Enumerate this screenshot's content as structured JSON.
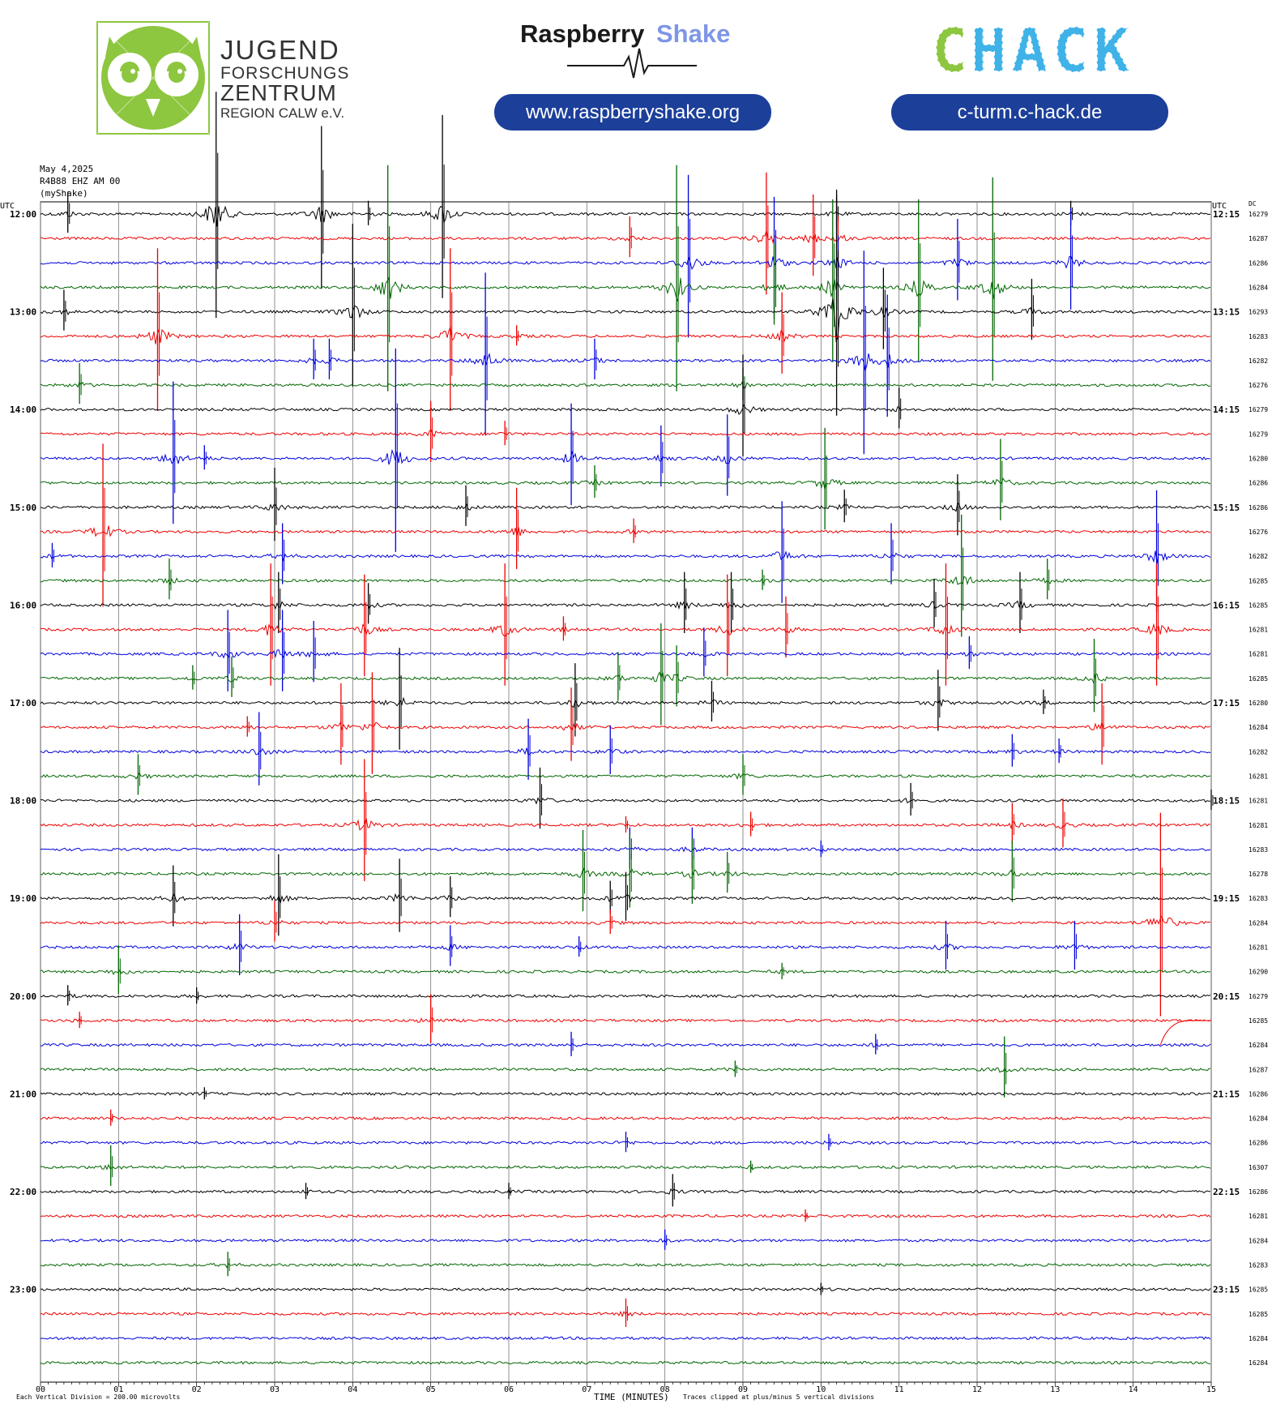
{
  "header": {
    "jfz": {
      "line1": "JUGEND",
      "line2": "FORSCHUNGS",
      "line3": "ZENTRUM",
      "line4": "REGION CALW e.V.",
      "logo_color": "#8dc63f"
    },
    "raspberry": {
      "word1": "Raspberry",
      "word2": "Shake",
      "word2_color": "#7f96e6",
      "url": "www.raspberryshake.org",
      "pill_color": "#1c3f9a"
    },
    "chack": {
      "c_text": "C",
      "hack_text": "HACK",
      "c_color": "#8dc63f",
      "hack_color": "#3fb2e8",
      "url": "c-turm.c-hack.de",
      "pill_color": "#1c3f9a"
    }
  },
  "chart_data": {
    "type": "line",
    "title": "",
    "info_lines": [
      "May 4,2025",
      "R4B88 EHZ AM 00",
      "(myShake)"
    ],
    "left_axis_label": "UTC",
    "right_axis_label": "UTC",
    "dc_label": "DC",
    "xlabel": "TIME (MINUTES)",
    "xlim": [
      0,
      15
    ],
    "x_ticks": [
      "00",
      "01",
      "02",
      "03",
      "04",
      "05",
      "06",
      "07",
      "08",
      "09",
      "10",
      "11",
      "12",
      "13",
      "14",
      "15"
    ],
    "left_hour_labels": [
      "12:00",
      "13:00",
      "14:00",
      "15:00",
      "16:00",
      "17:00",
      "18:00",
      "19:00",
      "20:00",
      "21:00",
      "22:00",
      "23:00"
    ],
    "right_hour_labels": [
      "12:15",
      "13:15",
      "14:15",
      "15:15",
      "16:15",
      "17:15",
      "18:15",
      "19:15",
      "20:15",
      "21:15",
      "22:15",
      "23:15"
    ],
    "dc_values": [
      "16279",
      "16287",
      "16286",
      "16284",
      "16293",
      "16283",
      "16282",
      "16276",
      "16279",
      "16279",
      "16280",
      "16286",
      "16286",
      "16276",
      "16282",
      "16285",
      "16285",
      "16281",
      "16281",
      "16285",
      "16280",
      "16284",
      "16282",
      "16281",
      "16281",
      "16281",
      "16283",
      "16278",
      "16283",
      "16284",
      "16281",
      "16290",
      "16279",
      "16285",
      "16284",
      "16287",
      "16286",
      "16284",
      "16286",
      "16307",
      "16286",
      "16281",
      "16284",
      "16283",
      "16285",
      "16285",
      "16284",
      "16284"
    ],
    "trace_colors": [
      "#000000",
      "#ee0000",
      "#0000dd",
      "#006600"
    ],
    "footer_left": "Each Vertical Division =  200.00 microvolts",
    "footer_right": "Traces clipped at plus/minus 5 vertical divisions",
    "spikes": [
      [
        0,
        0.35,
        1.0
      ],
      [
        0,
        2.25,
        7.5
      ],
      [
        0,
        3.6,
        4.0
      ],
      [
        0,
        5.15,
        4.5
      ],
      [
        0,
        4.2,
        0.6
      ],
      [
        0,
        10.2,
        0.7
      ],
      [
        0,
        13.2,
        0.6
      ],
      [
        1,
        7.55,
        1.0
      ],
      [
        1,
        9.3,
        3.0
      ],
      [
        1,
        9.9,
        2.0
      ],
      [
        1,
        10.2,
        2.0
      ],
      [
        2,
        8.3,
        4.0
      ],
      [
        2,
        9.4,
        3.0
      ],
      [
        2,
        10.2,
        2.5
      ],
      [
        2,
        11.75,
        2.0
      ],
      [
        2,
        13.2,
        2.5
      ],
      [
        3,
        4.45,
        6.0
      ],
      [
        3,
        8.15,
        6.0
      ],
      [
        3,
        9.4,
        2.0
      ],
      [
        3,
        10.15,
        4.0
      ],
      [
        3,
        11.25,
        4.0
      ],
      [
        3,
        12.2,
        5.0
      ],
      [
        4,
        0.3,
        1.0
      ],
      [
        4,
        4.0,
        4.0
      ],
      [
        4,
        10.2,
        13.0
      ],
      [
        4,
        10.8,
        2.0
      ],
      [
        4,
        12.7,
        1.5
      ],
      [
        5,
        1.5,
        4.0
      ],
      [
        5,
        5.25,
        4.0
      ],
      [
        5,
        9.5,
        2.0
      ],
      [
        5,
        6.1,
        0.5
      ],
      [
        6,
        3.5,
        1.0
      ],
      [
        6,
        3.7,
        1.0
      ],
      [
        6,
        5.7,
        4.0
      ],
      [
        6,
        7.1,
        1.0
      ],
      [
        6,
        10.55,
        5.0
      ],
      [
        6,
        10.85,
        3.0
      ],
      [
        7,
        0.5,
        1.0
      ],
      [
        7,
        9.0,
        0.8
      ],
      [
        8,
        9.0,
        2.5
      ],
      [
        8,
        11.0,
        1.0
      ],
      [
        9,
        5.0,
        1.5
      ],
      [
        9,
        5.95,
        0.6
      ],
      [
        10,
        1.7,
        3.5
      ],
      [
        10,
        4.55,
        5.0
      ],
      [
        10,
        6.8,
        2.5
      ],
      [
        10,
        7.95,
        1.5
      ],
      [
        10,
        8.8,
        2.0
      ],
      [
        10,
        2.1,
        0.6
      ],
      [
        11,
        7.1,
        0.8
      ],
      [
        11,
        10.05,
        2.5
      ],
      [
        11,
        12.3,
        2.0
      ],
      [
        12,
        3.0,
        1.8
      ],
      [
        12,
        5.45,
        1.0
      ],
      [
        12,
        10.3,
        0.8
      ],
      [
        12,
        11.75,
        1.5
      ],
      [
        13,
        0.8,
        4.0
      ],
      [
        13,
        6.1,
        2.0
      ],
      [
        13,
        7.6,
        0.6
      ],
      [
        14,
        0.15,
        0.6
      ],
      [
        14,
        3.1,
        1.5
      ],
      [
        14,
        9.5,
        2.5
      ],
      [
        14,
        10.9,
        1.5
      ],
      [
        14,
        14.3,
        3.0
      ],
      [
        15,
        1.65,
        1.0
      ],
      [
        15,
        11.8,
        3.0
      ],
      [
        15,
        12.9,
        1.0
      ],
      [
        15,
        9.25,
        0.5
      ],
      [
        16,
        3.05,
        1.5
      ],
      [
        16,
        4.2,
        1.0
      ],
      [
        16,
        8.25,
        1.5
      ],
      [
        16,
        8.85,
        1.5
      ],
      [
        16,
        11.45,
        1.2
      ],
      [
        16,
        12.55,
        1.5
      ],
      [
        17,
        2.95,
        3.0
      ],
      [
        17,
        4.15,
        2.5
      ],
      [
        17,
        5.95,
        3.0
      ],
      [
        17,
        8.8,
        2.5
      ],
      [
        17,
        9.55,
        1.5
      ],
      [
        17,
        11.6,
        3.0
      ],
      [
        17,
        14.3,
        3.0
      ],
      [
        17,
        6.7,
        0.6
      ],
      [
        18,
        2.4,
        2.0
      ],
      [
        18,
        3.1,
        2.0
      ],
      [
        18,
        3.5,
        1.5
      ],
      [
        18,
        8.5,
        1.2
      ],
      [
        18,
        11.9,
        0.8
      ],
      [
        19,
        1.95,
        0.6
      ],
      [
        19,
        2.45,
        1.0
      ],
      [
        19,
        7.4,
        1.2
      ],
      [
        19,
        7.95,
        2.5
      ],
      [
        19,
        8.15,
        1.5
      ],
      [
        19,
        13.5,
        1.8
      ],
      [
        20,
        4.6,
        2.5
      ],
      [
        20,
        6.85,
        1.8
      ],
      [
        20,
        8.6,
        1.0
      ],
      [
        20,
        11.5,
        1.5
      ],
      [
        20,
        12.85,
        0.6
      ],
      [
        21,
        3.85,
        2.0
      ],
      [
        21,
        4.25,
        2.5
      ],
      [
        21,
        6.8,
        1.8
      ],
      [
        21,
        13.6,
        2.0
      ],
      [
        21,
        2.65,
        0.5
      ],
      [
        22,
        2.8,
        1.8
      ],
      [
        22,
        6.25,
        1.5
      ],
      [
        22,
        7.3,
        1.2
      ],
      [
        22,
        12.45,
        0.8
      ],
      [
        22,
        13.05,
        0.6
      ],
      [
        23,
        1.25,
        1.0
      ],
      [
        23,
        9.0,
        1.0
      ],
      [
        24,
        6.4,
        1.5
      ],
      [
        24,
        11.15,
        0.8
      ],
      [
        24,
        15.0,
        0.5
      ],
      [
        25,
        4.15,
        3.0
      ],
      [
        25,
        9.1,
        0.6
      ],
      [
        25,
        12.45,
        1.0
      ],
      [
        25,
        13.1,
        1.2
      ],
      [
        25,
        7.5,
        0.4
      ],
      [
        26,
        7.55,
        1.0
      ],
      [
        26,
        8.35,
        1.0
      ],
      [
        26,
        10.0,
        0.4
      ],
      [
        27,
        6.95,
        2.0
      ],
      [
        27,
        7.55,
        1.8
      ],
      [
        27,
        8.35,
        1.6
      ],
      [
        27,
        8.8,
        1.0
      ],
      [
        27,
        12.45,
        1.5
      ],
      [
        28,
        1.7,
        1.5
      ],
      [
        28,
        3.05,
        2.0
      ],
      [
        28,
        4.6,
        1.8
      ],
      [
        28,
        5.25,
        1.0
      ],
      [
        28,
        7.3,
        0.8
      ],
      [
        28,
        7.5,
        1.2
      ],
      [
        29,
        3.0,
        1.0
      ],
      [
        29,
        7.3,
        0.6
      ],
      [
        29,
        14.35,
        5.0
      ],
      [
        30,
        2.55,
        1.5
      ],
      [
        30,
        5.25,
        1.0
      ],
      [
        30,
        6.9,
        0.5
      ],
      [
        30,
        11.6,
        1.2
      ],
      [
        30,
        13.25,
        1.2
      ],
      [
        31,
        1.0,
        1.2
      ],
      [
        31,
        9.5,
        0.4
      ],
      [
        32,
        0.35,
        0.5
      ],
      [
        32,
        2.0,
        0.4
      ],
      [
        33,
        0.5,
        0.4
      ],
      [
        33,
        5.0,
        1.2
      ],
      [
        34,
        6.8,
        0.6
      ],
      [
        34,
        10.7,
        0.5
      ],
      [
        35,
        8.9,
        0.4
      ],
      [
        35,
        12.35,
        1.5
      ],
      [
        36,
        2.1,
        0.3
      ],
      [
        37,
        0.9,
        0.4
      ],
      [
        38,
        7.5,
        0.5
      ],
      [
        38,
        10.1,
        0.4
      ],
      [
        39,
        0.9,
        1.0
      ],
      [
        39,
        9.1,
        0.3
      ],
      [
        40,
        3.4,
        0.4
      ],
      [
        40,
        6.0,
        0.4
      ],
      [
        40,
        8.1,
        0.8
      ],
      [
        41,
        9.8,
        0.3
      ],
      [
        42,
        8.0,
        0.5
      ],
      [
        43,
        2.4,
        0.6
      ],
      [
        44,
        10.0,
        0.3
      ],
      [
        45,
        7.5,
        0.7
      ]
    ]
  }
}
